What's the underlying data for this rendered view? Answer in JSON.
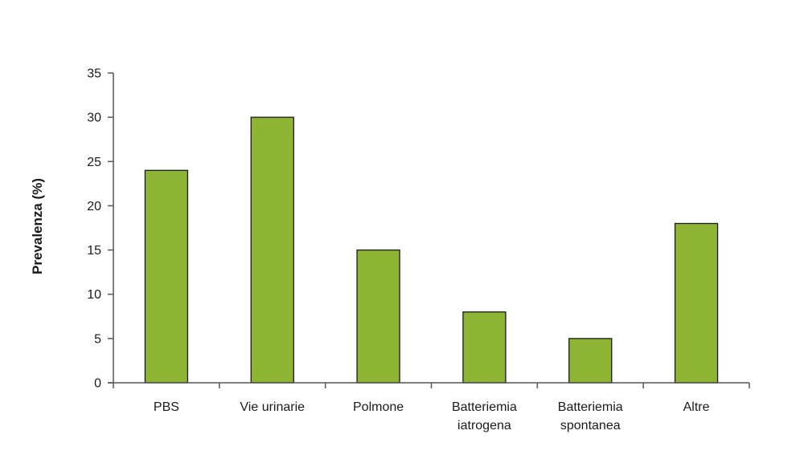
{
  "chart_data": {
    "type": "bar",
    "categories": [
      [
        "PBS"
      ],
      [
        "Vie urinarie"
      ],
      [
        "Polmone"
      ],
      [
        "Batteriemia",
        "iatrogena"
      ],
      [
        "Batteriemia",
        "spontanea"
      ],
      [
        "Altre"
      ]
    ],
    "values": [
      24,
      30,
      15,
      8,
      5,
      18
    ],
    "ylabel": "Prevalenza  (%)",
    "xlabel": "",
    "ylim": [
      0,
      35
    ],
    "yticks": [
      0,
      5,
      10,
      15,
      20,
      25,
      30,
      35
    ],
    "grid": false,
    "bar_color": "#8db432",
    "bar_edge_color": "#1a1a1a",
    "axis_color": "#555555"
  }
}
